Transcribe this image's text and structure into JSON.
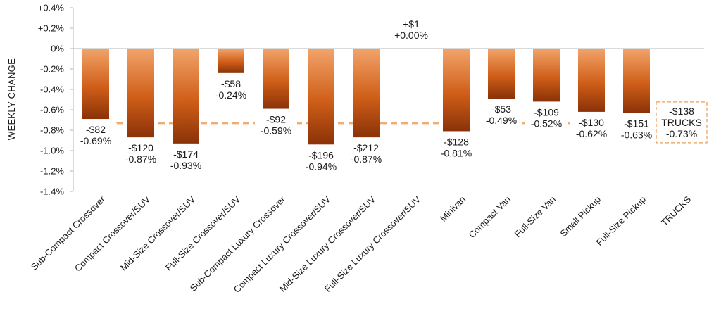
{
  "chart_data": {
    "type": "bar",
    "ylabel": "WEEKLY CHANGE",
    "ylim": [
      -1.4,
      0.4
    ],
    "y_ticks": [
      "+0.4%",
      "+0.2%",
      "0%",
      "-0.2%",
      "-0.4%",
      "-0.6%",
      "-0.8%",
      "-1.0%",
      "-1.2%",
      "-1.4%"
    ],
    "grid": false,
    "categories": [
      "Sub-Compact Crossover",
      "Compact Crossover/SUV",
      "Mid-Size Crossover/SUV",
      "Full-Size Crossover/SUV",
      "Sub-Compact Luxury Crossover",
      "Compact Luxury Crossover/SUV",
      "Mid-Size Luxury Crossover/SUV",
      "Full-Size Luxury Crossover/SUV",
      "Minivan",
      "Compact Van",
      "Full-Size Van",
      "Small Pickup",
      "Full-Size Pickup",
      "TRUCKS"
    ],
    "values": [
      -0.69,
      -0.87,
      -0.93,
      -0.24,
      -0.59,
      -0.94,
      -0.87,
      0.0,
      -0.81,
      -0.49,
      -0.52,
      -0.62,
      -0.63,
      null
    ],
    "dollar_labels": [
      "-$82",
      "-$120",
      "-$174",
      "-$58",
      "-$92",
      "-$196",
      "-$212",
      "+$1",
      "-$128",
      "-$53",
      "-$109",
      "-$130",
      "-$151",
      "-$138"
    ],
    "pct_labels": [
      "-0.69%",
      "-0.87%",
      "-0.93%",
      "-0.24%",
      "-0.59%",
      "-0.94%",
      "-0.87%",
      "+0.00%",
      "-0.81%",
      "-0.49%",
      "-0.52%",
      "-0.62%",
      "-0.63%",
      "-0.73%"
    ],
    "segment_average": {
      "label": "TRUCKS",
      "value": -0.73,
      "dollar_label": "-$138",
      "pct_label": "-0.73%",
      "style": "dashed"
    },
    "colors": {
      "bar_top": "#f2a46a",
      "bar_mid": "#cf5e18",
      "bar_bottom": "#8a3208",
      "average_line": "#f0ad72",
      "axis": "#b5b5b5"
    }
  }
}
